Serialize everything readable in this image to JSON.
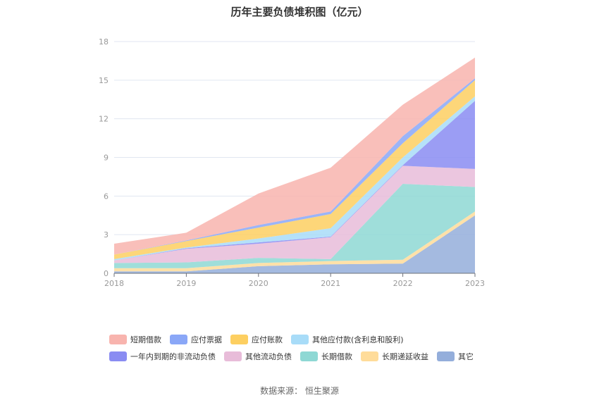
{
  "title": "历年主要负债堆积图（亿元）",
  "source": "数据来源：   恒生聚源",
  "chart_data": {
    "type": "area",
    "stacked": true,
    "title": "历年主要负债堆积图（亿元）",
    "x": [
      "2018",
      "2019",
      "2020",
      "2021",
      "2022",
      "2023"
    ],
    "ylim": [
      0,
      18
    ],
    "yticks": [
      0,
      3,
      6,
      9,
      12,
      15,
      18
    ],
    "grid": true,
    "legend_position": "bottom",
    "series": [
      {
        "name": "其它",
        "color": "#94AEDB",
        "values": [
          0.15,
          0.15,
          0.55,
          0.7,
          0.75,
          4.5
        ]
      },
      {
        "name": "长期递延收益",
        "color": "#FFDC9A",
        "values": [
          0.25,
          0.25,
          0.25,
          0.25,
          0.3,
          0.3
        ]
      },
      {
        "name": "长期借款",
        "color": "#8ED8D4",
        "values": [
          0.4,
          0.45,
          0.4,
          0.15,
          5.9,
          1.9
        ]
      },
      {
        "name": "其他流动负债",
        "color": "#E8BCD9",
        "values": [
          0.2,
          1.05,
          1.1,
          1.7,
          1.4,
          1.4
        ]
      },
      {
        "name": "一年内到期的非流动负债",
        "color": "#8A8CF2",
        "values": [
          0.0,
          0.05,
          0.1,
          0.05,
          0.05,
          5.3
        ]
      },
      {
        "name": "其他应付款(含利息和股利)",
        "color": "#A8DCF8",
        "values": [
          0.1,
          0.05,
          0.3,
          0.65,
          0.6,
          0.35
        ]
      },
      {
        "name": "应付账款",
        "color": "#FDCF61",
        "values": [
          0.35,
          0.5,
          0.85,
          1.1,
          1.1,
          1.25
        ]
      },
      {
        "name": "应付票据",
        "color": "#8AA7F7",
        "values": [
          0.0,
          0.05,
          0.2,
          0.2,
          0.55,
          0.15
        ]
      },
      {
        "name": "短期借款",
        "color": "#F8B4AE",
        "values": [
          0.85,
          0.6,
          2.45,
          3.4,
          2.45,
          1.6
        ]
      }
    ]
  },
  "legend_rows": [
    [
      "短期借款",
      "应付票据",
      "应付账款",
      "其他应付款(含利息和股利)"
    ],
    [
      "一年内到期的非流动负债",
      "其他流动负债",
      "长期借款",
      "长期递延收益",
      "其它"
    ]
  ]
}
